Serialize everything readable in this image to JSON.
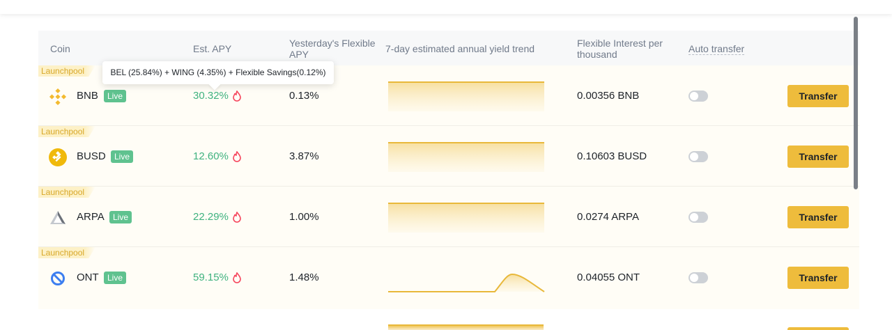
{
  "header": {
    "coin": "Coin",
    "est_apy": "Est. APY",
    "yesterday": "Yesterday's Flexible APY",
    "trend": "7-day estimated annual yield trend",
    "interest": "Flexible Interest per thousand",
    "auto_transfer": "Auto transfer"
  },
  "tooltip": "BEL (25.84%) + WING (4.35%) + Flexible Savings(0.12%)",
  "rows": [
    {
      "tag": "Launchpool",
      "coin": "BNB",
      "live": "Live",
      "apy": "30.32%",
      "yesterday": "0.13%",
      "interest": "0.00356 BNB",
      "transfer": "Transfer",
      "auto_transfer": false,
      "icon": "bnb-icon",
      "trend": "flat"
    },
    {
      "tag": "Launchpool",
      "coin": "BUSD",
      "live": "Live",
      "apy": "12.60%",
      "yesterday": "3.87%",
      "interest": "0.10603 BUSD",
      "transfer": "Transfer",
      "auto_transfer": false,
      "icon": "busd-icon",
      "trend": "flat"
    },
    {
      "tag": "Launchpool",
      "coin": "ARPA",
      "live": "Live",
      "apy": "22.29%",
      "yesterday": "1.00%",
      "interest": "0.0274 ARPA",
      "transfer": "Transfer",
      "auto_transfer": false,
      "icon": "arpa-icon",
      "trend": "flat"
    },
    {
      "tag": "Launchpool",
      "coin": "ONT",
      "live": "Live",
      "apy": "59.15%",
      "yesterday": "1.48%",
      "interest": "0.04055 ONT",
      "transfer": "Transfer",
      "auto_transfer": false,
      "icon": "ont-icon",
      "trend": "spike"
    }
  ],
  "colors": {
    "accent": "#eebc3c",
    "apy_green": "#3fb27f",
    "live_badge": "#5fc28f",
    "tag_text": "#d8a829",
    "row_bg": "#fffdf6"
  }
}
